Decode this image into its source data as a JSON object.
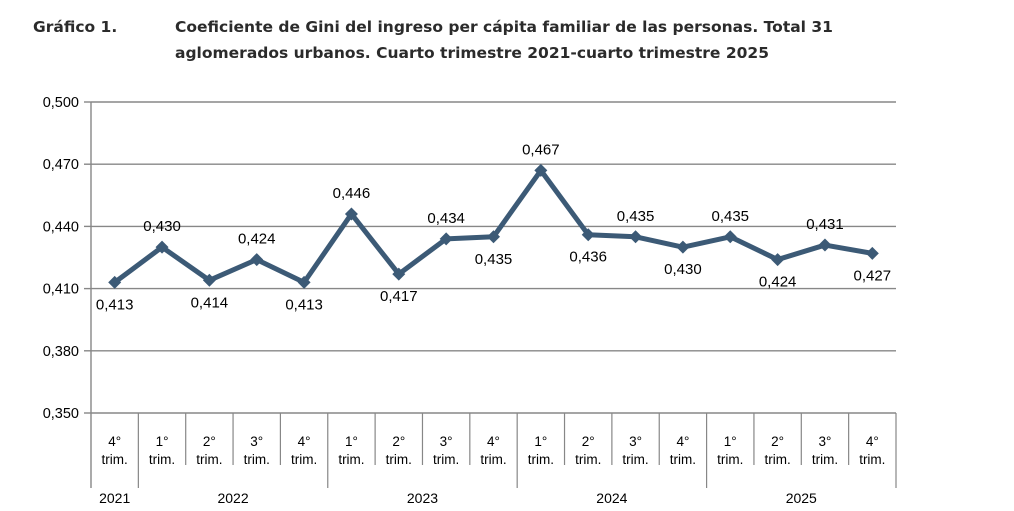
{
  "header": {
    "label": "Gráfico 1.",
    "title_line1": "Coeficiente de Gini del ingreso per cápita familiar de las personas. Total 31",
    "title_line2": "aglomerados urbanos. Cuarto trimestre 2021-cuarto trimestre 2025"
  },
  "chart_data": {
    "type": "line",
    "title": "Coeficiente de Gini del ingreso per cápita familiar de las personas. Total 31 aglomerados urbanos. Cuarto trimestre 2021-cuarto trimestre 2025",
    "categories": [
      "4° trim. 2021",
      "1° trim. 2022",
      "2° trim. 2022",
      "3° trim. 2022",
      "4° trim. 2022",
      "1° trim. 2023",
      "2° trim. 2023",
      "3° trim. 2023",
      "4° trim. 2023",
      "1° trim. 2024",
      "2° trim. 2024",
      "3° trim. 2024",
      "4° trim. 2024",
      "1° trim. 2025",
      "2° trim. 2025",
      "3° trim. 2025",
      "4° trim. 2025"
    ],
    "series": [
      {
        "name": "Coeficiente de Gini del ingreso per cápita familiar",
        "values": [
          0.413,
          0.43,
          0.414,
          0.424,
          0.413,
          0.446,
          0.417,
          0.434,
          0.435,
          0.467,
          0.436,
          0.435,
          0.43,
          0.435,
          0.424,
          0.431,
          0.427
        ],
        "point_labels": [
          "0,413",
          "0,430",
          "0,414",
          "0,424",
          "0,413",
          "0,446",
          "0,417",
          "0,434",
          "0,435",
          "0,467",
          "0,436",
          "0,435",
          "0,430",
          "0,435",
          "0,424",
          "0,431",
          "0,427"
        ],
        "label_positions": [
          "below",
          "above",
          "below",
          "above",
          "below",
          "above",
          "below",
          "above",
          "below",
          "above",
          "below",
          "above",
          "below",
          "above",
          "below",
          "above",
          "below"
        ]
      }
    ],
    "x_quarter_labels": [
      "4°",
      "1°",
      "2°",
      "3°",
      "4°",
      "1°",
      "2°",
      "3°",
      "4°",
      "1°",
      "2°",
      "3°",
      "4°",
      "1°",
      "2°",
      "3°",
      "4°"
    ],
    "x_quarter_suffix": "trim.",
    "x_year_groups": [
      {
        "label": "2021",
        "span": 1
      },
      {
        "label": "2022",
        "span": 4
      },
      {
        "label": "2023",
        "span": 4
      },
      {
        "label": "2024",
        "span": 4
      },
      {
        "label": "2025",
        "span": 4
      }
    ],
    "y_tick_labels": [
      "0,500",
      "0,470",
      "0,440",
      "0,410",
      "0,380",
      "0,350"
    ],
    "ylim": [
      0.35,
      0.5
    ],
    "y_step": 0.03,
    "grid": true,
    "legend": false,
    "xlabel": "",
    "ylabel": "",
    "colors": {
      "line": "#3c5a76",
      "grid": "#878787",
      "axis": "#878787",
      "text": "#000000",
      "title_text": "#2b2b2b"
    }
  }
}
